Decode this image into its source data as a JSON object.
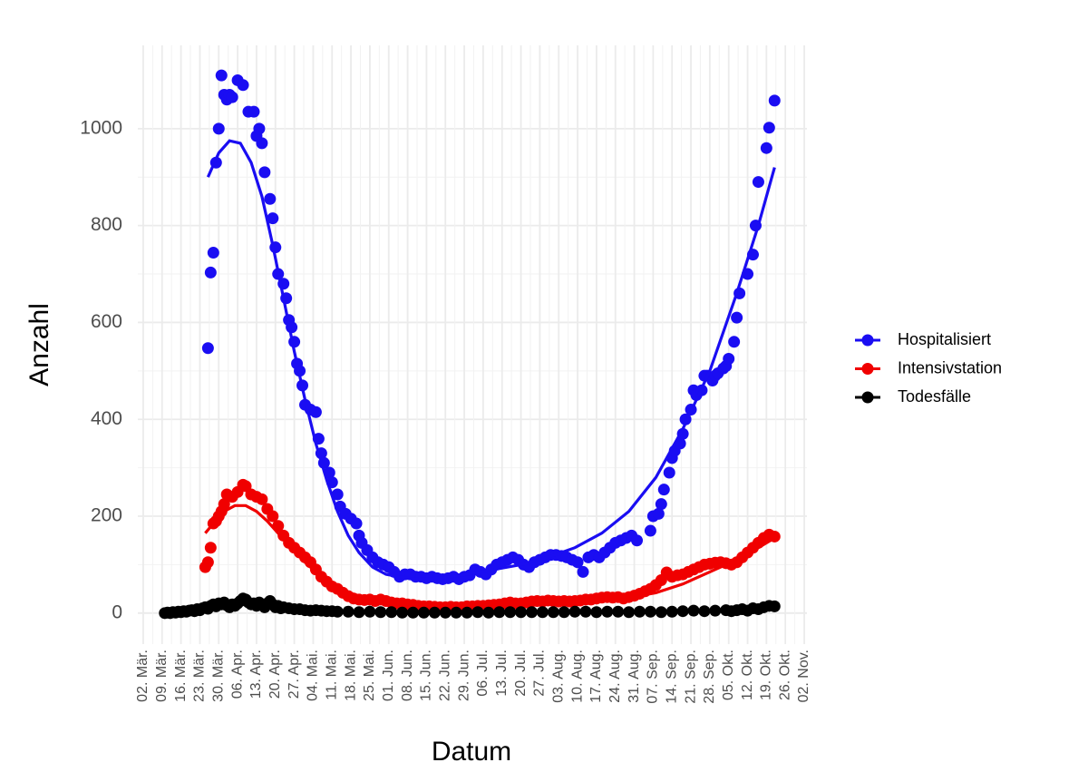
{
  "chart_data": {
    "type": "scatter",
    "x_label": "Datum",
    "y_label": "Anzahl",
    "xlim": [
      -2,
      246
    ],
    "ylim": [
      -64,
      1172
    ],
    "xticks": [
      {
        "value": 0,
        "label": "02. Mär."
      },
      {
        "value": 7,
        "label": "09. Mär."
      },
      {
        "value": 14,
        "label": "16. Mär."
      },
      {
        "value": 21,
        "label": "23. Mär."
      },
      {
        "value": 28,
        "label": "30. Mär."
      },
      {
        "value": 35,
        "label": "06. Apr."
      },
      {
        "value": 42,
        "label": "13. Apr."
      },
      {
        "value": 49,
        "label": "20. Apr."
      },
      {
        "value": 56,
        "label": "27. Apr."
      },
      {
        "value": 63,
        "label": "04. Mai."
      },
      {
        "value": 70,
        "label": "11. Mai."
      },
      {
        "value": 77,
        "label": "18. Mai."
      },
      {
        "value": 84,
        "label": "25. Mai."
      },
      {
        "value": 91,
        "label": "01. Jun."
      },
      {
        "value": 98,
        "label": "08. Jun."
      },
      {
        "value": 105,
        "label": "15. Jun."
      },
      {
        "value": 112,
        "label": "22. Jun."
      },
      {
        "value": 119,
        "label": "29. Jun."
      },
      {
        "value": 126,
        "label": "06. Jul."
      },
      {
        "value": 133,
        "label": "13. Jul."
      },
      {
        "value": 140,
        "label": "20. Jul."
      },
      {
        "value": 147,
        "label": "27. Jul."
      },
      {
        "value": 154,
        "label": "03. Aug."
      },
      {
        "value": 161,
        "label": "10. Aug."
      },
      {
        "value": 168,
        "label": "17. Aug."
      },
      {
        "value": 175,
        "label": "24. Aug."
      },
      {
        "value": 182,
        "label": "31. Aug."
      },
      {
        "value": 189,
        "label": "07. Sep."
      },
      {
        "value": 196,
        "label": "14. Sep."
      },
      {
        "value": 203,
        "label": "21. Sep."
      },
      {
        "value": 210,
        "label": "28. Sep."
      },
      {
        "value": 217,
        "label": "05. Okt."
      },
      {
        "value": 224,
        "label": "12. Okt."
      },
      {
        "value": 231,
        "label": "19. Okt."
      },
      {
        "value": 238,
        "label": "26. Okt."
      },
      {
        "value": 245,
        "label": "02. Nov."
      }
    ],
    "yticks": [
      0,
      200,
      400,
      600,
      800,
      1000
    ],
    "grid": true,
    "legend_position": "right",
    "series": [
      {
        "name": "Hospitalisiert",
        "color": "#1a0df2",
        "x": [
          24,
          25,
          26,
          27,
          28,
          29,
          30,
          31,
          32,
          33,
          35,
          37,
          39,
          41,
          42,
          43,
          44,
          45,
          47,
          48,
          49,
          50,
          52,
          53,
          54,
          55,
          56,
          57,
          58,
          59,
          60,
          62,
          64,
          65,
          66,
          67,
          69,
          70,
          72,
          73,
          75,
          77,
          79,
          80,
          81,
          83,
          85,
          87,
          89,
          91,
          93,
          95,
          97,
          99,
          101,
          103,
          105,
          107,
          109,
          111,
          113,
          115,
          117,
          119,
          121,
          123,
          125,
          127,
          129,
          131,
          133,
          135,
          137,
          139,
          141,
          143,
          145,
          147,
          149,
          151,
          153,
          155,
          157,
          159,
          161,
          163,
          165,
          167,
          169,
          171,
          173,
          175,
          177,
          179,
          181,
          183,
          188,
          189,
          191,
          192,
          193,
          195,
          196,
          197,
          199,
          200,
          201,
          203,
          204,
          205,
          207,
          208,
          209,
          211,
          212,
          213,
          215,
          216,
          217,
          219,
          220,
          221,
          224,
          226,
          227,
          228,
          231,
          232,
          234
        ],
        "values": [
          547,
          703,
          744,
          930,
          1000,
          1110,
          1070,
          1060,
          1070,
          1065,
          1100,
          1090,
          1035,
          1035,
          985,
          1000,
          970,
          910,
          855,
          815,
          755,
          700,
          680,
          650,
          605,
          590,
          560,
          515,
          500,
          470,
          430,
          420,
          415,
          360,
          330,
          310,
          290,
          270,
          245,
          220,
          205,
          195,
          185,
          160,
          145,
          130,
          115,
          105,
          100,
          95,
          85,
          75,
          80,
          80,
          75,
          75,
          72,
          75,
          72,
          70,
          72,
          75,
          70,
          75,
          78,
          90,
          85,
          80,
          90,
          100,
          105,
          110,
          115,
          110,
          100,
          95,
          105,
          110,
          115,
          120,
          120,
          118,
          115,
          110,
          105,
          85,
          115,
          120,
          115,
          125,
          135,
          145,
          150,
          155,
          160,
          150,
          170,
          200,
          205,
          225,
          255,
          290,
          320,
          335,
          350,
          370,
          400,
          420,
          460,
          450,
          460,
          490,
          490,
          480,
          490,
          495,
          505,
          510,
          525,
          560,
          610,
          660,
          700,
          740,
          800,
          890,
          960,
          1002,
          1058
        ],
        "trend_x": [
          24,
          28,
          32,
          36,
          40,
          44,
          48,
          52,
          56,
          60,
          64,
          68,
          72,
          76,
          80,
          85,
          90,
          100,
          110,
          120,
          130,
          140,
          150,
          160,
          170,
          180,
          190,
          200,
          210,
          220,
          228,
          234
        ],
        "trend_values": [
          900,
          950,
          975,
          970,
          930,
          860,
          760,
          650,
          540,
          440,
          350,
          275,
          210,
          160,
          125,
          95,
          80,
          70,
          72,
          80,
          90,
          100,
          115,
          135,
          165,
          210,
          280,
          380,
          500,
          660,
          800,
          920
        ]
      },
      {
        "name": "Intensivstation",
        "color": "#f00000",
        "x": [
          23,
          24,
          25,
          26,
          27,
          28,
          29,
          30,
          31,
          33,
          35,
          37,
          38,
          40,
          42,
          44,
          46,
          48,
          50,
          52,
          54,
          56,
          58,
          60,
          62,
          64,
          66,
          68,
          70,
          72,
          74,
          76,
          78,
          80,
          82,
          84,
          86,
          88,
          90,
          92,
          94,
          96,
          98,
          100,
          102,
          104,
          106,
          108,
          110,
          112,
          114,
          116,
          118,
          120,
          122,
          124,
          126,
          128,
          130,
          132,
          134,
          136,
          138,
          140,
          142,
          144,
          146,
          148,
          150,
          152,
          154,
          156,
          158,
          160,
          162,
          164,
          166,
          168,
          170,
          172,
          174,
          176,
          178,
          180,
          182,
          184,
          186,
          188,
          190,
          192,
          194,
          196,
          198,
          200,
          202,
          204,
          206,
          208,
          210,
          212,
          214,
          216,
          218,
          220,
          222,
          224,
          226,
          228,
          230,
          232,
          234
        ],
        "values": [
          95,
          105,
          135,
          185,
          190,
          200,
          210,
          225,
          245,
          240,
          250,
          265,
          262,
          245,
          240,
          235,
          215,
          200,
          180,
          160,
          145,
          135,
          125,
          115,
          105,
          90,
          75,
          65,
          55,
          50,
          42,
          35,
          30,
          28,
          27,
          28,
          25,
          28,
          25,
          22,
          20,
          20,
          18,
          17,
          15,
          14,
          14,
          13,
          12,
          12,
          13,
          12,
          12,
          14,
          14,
          15,
          15,
          16,
          17,
          18,
          20,
          22,
          20,
          20,
          22,
          24,
          25,
          24,
          26,
          25,
          24,
          25,
          24,
          25,
          26,
          28,
          28,
          30,
          32,
          33,
          32,
          33,
          30,
          33,
          36,
          40,
          45,
          50,
          58,
          68,
          84,
          75,
          78,
          80,
          85,
          90,
          95,
          100,
          102,
          104,
          105,
          103,
          100,
          105,
          115,
          125,
          135,
          145,
          155,
          162,
          158
        ],
        "trend_x": [
          23,
          26,
          30,
          34,
          38,
          42,
          46,
          50,
          55,
          60,
          65,
          70,
          75,
          80,
          90,
          100,
          110,
          120,
          130,
          140,
          150,
          160,
          170,
          180,
          190,
          200,
          210,
          220,
          228,
          234
        ],
        "trend_values": [
          165,
          185,
          210,
          222,
          222,
          210,
          190,
          165,
          135,
          105,
          80,
          60,
          45,
          35,
          22,
          15,
          12,
          12,
          14,
          17,
          20,
          23,
          27,
          32,
          42,
          60,
          85,
          110,
          135,
          155
        ]
      },
      {
        "name": "Todesfälle",
        "color": "#000000",
        "x": [
          8,
          9,
          10,
          11,
          12,
          13,
          14,
          15,
          16,
          17,
          18,
          19,
          20,
          21,
          22,
          23,
          24,
          25,
          26,
          27,
          28,
          29,
          30,
          31,
          32,
          33,
          34,
          35,
          36,
          37,
          38,
          39,
          40,
          41,
          42,
          43,
          44,
          45,
          46,
          47,
          48,
          49,
          50,
          51,
          52,
          54,
          56,
          58,
          60,
          62,
          64,
          66,
          68,
          70,
          72,
          76,
          80,
          84,
          88,
          92,
          96,
          100,
          104,
          108,
          112,
          116,
          120,
          124,
          128,
          132,
          136,
          140,
          144,
          148,
          152,
          156,
          160,
          164,
          168,
          172,
          176,
          180,
          184,
          188,
          192,
          196,
          200,
          204,
          208,
          212,
          216,
          218,
          220,
          222,
          224,
          226,
          228,
          230,
          232,
          234
        ],
        "values": [
          0,
          1,
          0,
          2,
          1,
          3,
          2,
          4,
          3,
          5,
          6,
          4,
          8,
          6,
          10,
          12,
          9,
          15,
          18,
          14,
          20,
          18,
          22,
          16,
          12,
          18,
          15,
          20,
          25,
          30,
          28,
          22,
          18,
          20,
          15,
          22,
          18,
          12,
          20,
          25,
          18,
          12,
          15,
          10,
          12,
          10,
          8,
          8,
          6,
          5,
          6,
          5,
          4,
          4,
          3,
          3,
          2,
          3,
          2,
          2,
          1,
          1,
          1,
          1,
          1,
          1,
          1,
          2,
          1,
          2,
          2,
          2,
          2,
          2,
          2,
          2,
          3,
          3,
          2,
          3,
          3,
          2,
          3,
          3,
          2,
          3,
          4,
          5,
          4,
          5,
          6,
          4,
          6,
          8,
          5,
          10,
          8,
          12,
          15,
          14
        ],
        "trend_x": [
          8,
          20,
          30,
          38,
          46,
          55,
          65,
          80,
          100,
          130,
          160,
          190,
          210,
          225,
          234
        ],
        "trend_values": [
          0,
          10,
          17,
          19,
          15,
          10,
          6,
          3,
          1,
          1,
          2,
          3,
          4,
          7,
          10
        ]
      }
    ]
  }
}
